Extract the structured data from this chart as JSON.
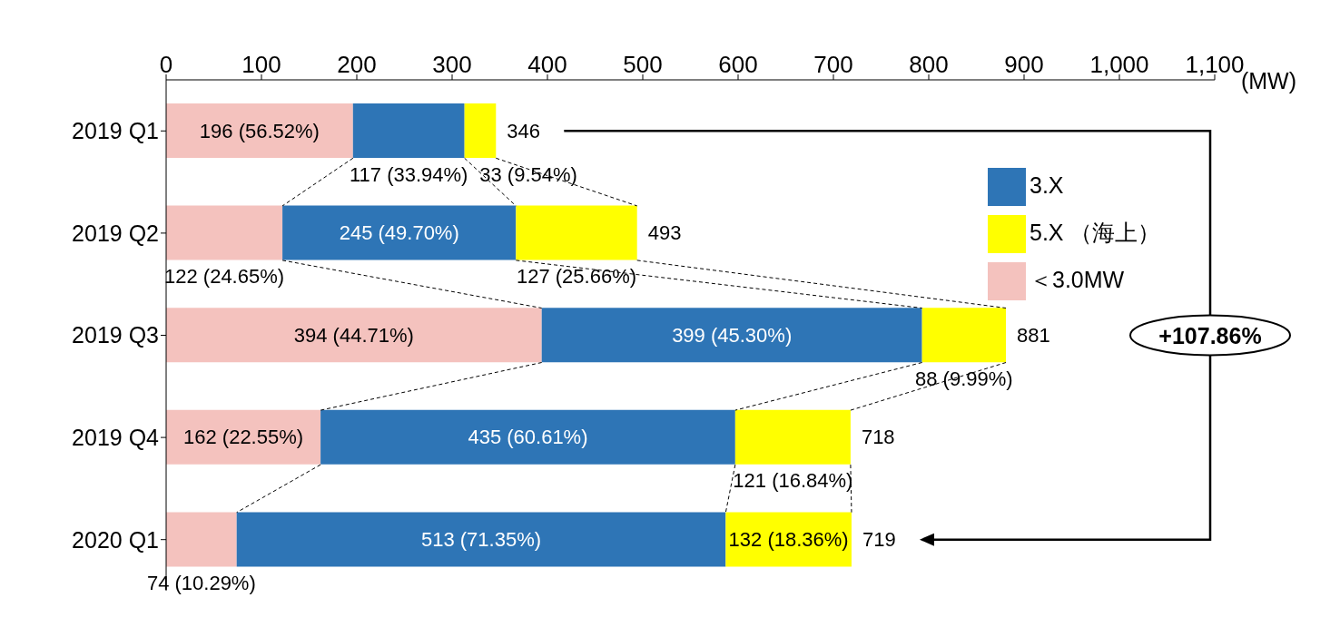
{
  "chart_data": {
    "type": "bar",
    "orientation": "horizontal",
    "stacked": true,
    "categories": [
      "2019 Q1",
      "2019 Q2",
      "2019 Q3",
      "2019 Q4",
      "2020 Q1"
    ],
    "xlabel": "(MW)",
    "series": [
      {
        "name": "＜3.0MW",
        "color": "#f4c2be",
        "values": [
          196,
          122,
          394,
          162,
          74
        ],
        "value_labels": [
          "196 (56.52%)",
          "122 (24.65%)",
          "394 (44.71%)",
          "162 (22.55%)",
          "74 (10.29%)"
        ]
      },
      {
        "name": "3.X",
        "color": "#2e75b6",
        "values": [
          117,
          245,
          399,
          435,
          513
        ],
        "value_labels": [
          "117 (33.94%)",
          "245 (49.70%)",
          "399 (45.30%)",
          "435 (60.61%)",
          "513 (71.35%)"
        ]
      },
      {
        "name": "5.X （海上）",
        "color": "#ffff00",
        "values": [
          33,
          127,
          88,
          121,
          132
        ],
        "value_labels": [
          "33 (9.54%)",
          "127 (25.66%)",
          "88 (9.99%)",
          "121 (16.84%)",
          "132 (18.36%)"
        ]
      }
    ],
    "totals": [
      "346",
      "493",
      "881",
      "718",
      "719"
    ],
    "annotations": [
      "+107.86%"
    ],
    "xlim": [
      0,
      1100
    ],
    "xticks": [
      0,
      100,
      200,
      300,
      400,
      500,
      600,
      700,
      800,
      900,
      {
        "value": 1000,
        "label": "1,000"
      },
      {
        "value": 1100,
        "label": "1,100"
      }
    ],
    "grid": false,
    "legend": "top right"
  }
}
